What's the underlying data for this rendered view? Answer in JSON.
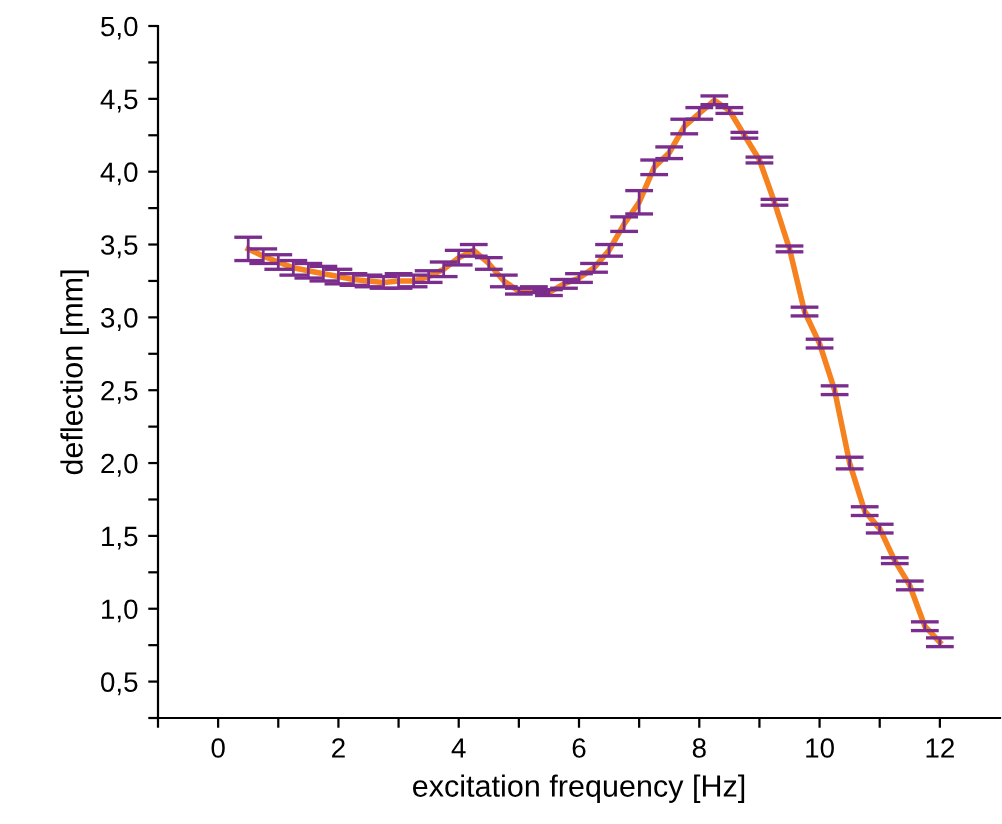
{
  "chart_data": {
    "type": "line",
    "xlabel": "excitation frequency [Hz]",
    "ylabel": "deflection [mm]",
    "x": [
      0.5,
      0.75,
      1.0,
      1.25,
      1.5,
      1.75,
      2.0,
      2.25,
      2.5,
      2.75,
      3.0,
      3.25,
      3.5,
      3.75,
      4.0,
      4.25,
      4.5,
      4.75,
      5.0,
      5.25,
      5.5,
      5.75,
      6.0,
      6.25,
      6.5,
      6.75,
      7.0,
      7.25,
      7.5,
      7.75,
      8.0,
      8.25,
      8.5,
      8.75,
      9.0,
      9.25,
      9.5,
      9.75,
      10.0,
      10.25,
      10.5,
      10.75,
      11.0,
      11.25,
      11.5,
      11.75,
      12.0
    ],
    "series": [
      {
        "color": "#f5821f",
        "values": [
          3.47,
          3.42,
          3.38,
          3.34,
          3.32,
          3.3,
          3.28,
          3.26,
          3.25,
          3.24,
          3.25,
          3.25,
          3.28,
          3.33,
          3.41,
          3.46,
          3.37,
          3.25,
          3.18,
          3.19,
          3.17,
          3.23,
          3.27,
          3.34,
          3.46,
          3.64,
          3.79,
          4.03,
          4.13,
          4.31,
          4.4,
          4.49,
          4.42,
          4.25,
          4.08,
          3.79,
          3.47,
          3.04,
          2.82,
          2.5,
          2.0,
          1.67,
          1.55,
          1.33,
          1.16,
          0.88,
          0.77
        ],
        "errors": [
          0.08,
          0.05,
          0.05,
          0.05,
          0.05,
          0.05,
          0.05,
          0.04,
          0.04,
          0.04,
          0.05,
          0.04,
          0.04,
          0.05,
          0.05,
          0.04,
          0.04,
          0.04,
          0.02,
          0.02,
          0.02,
          0.03,
          0.03,
          0.03,
          0.04,
          0.05,
          0.08,
          0.05,
          0.04,
          0.05,
          0.04,
          0.03,
          0.02,
          0.02,
          0.02,
          0.02,
          0.02,
          0.03,
          0.03,
          0.03,
          0.04,
          0.03,
          0.03,
          0.02,
          0.03,
          0.03,
          0.03
        ]
      }
    ],
    "xlim": [
      -1,
      13
    ],
    "ylim": [
      0.25,
      5.0
    ],
    "xticks": [
      {
        "value": -1,
        "label": null
      },
      0,
      {
        "value": 1,
        "label": null
      },
      2,
      {
        "value": 3,
        "label": null
      },
      4,
      {
        "value": 5,
        "label": null
      },
      6,
      {
        "value": 7,
        "label": null
      },
      8,
      {
        "value": 9,
        "label": null
      },
      10,
      {
        "value": 11,
        "label": null
      },
      12
    ],
    "yticks": [
      {
        "value": 0.25,
        "label": null
      },
      {
        "value": 0.5,
        "label": "0,5"
      },
      {
        "value": 0.75,
        "label": null
      },
      {
        "value": 1.0,
        "label": "1,0"
      },
      {
        "value": 1.25,
        "label": null
      },
      {
        "value": 1.5,
        "label": "1,5"
      },
      {
        "value": 1.75,
        "label": null
      },
      {
        "value": 2.0,
        "label": "2,0"
      },
      {
        "value": 2.25,
        "label": null
      },
      {
        "value": 2.5,
        "label": "2,5"
      },
      {
        "value": 2.75,
        "label": null
      },
      {
        "value": 3.0,
        "label": "3,0"
      },
      {
        "value": 3.25,
        "label": null
      },
      {
        "value": 3.5,
        "label": "3,5"
      },
      {
        "value": 3.75,
        "label": null
      },
      {
        "value": 4.0,
        "label": "4,0"
      },
      {
        "value": 4.25,
        "label": null
      },
      {
        "value": 4.5,
        "label": "4,5"
      },
      {
        "value": 4.75,
        "label": null
      },
      {
        "value": 5.0,
        "label": "5,0"
      }
    ],
    "grid": false,
    "legend": false,
    "marker": "none",
    "line_style": "solid"
  }
}
